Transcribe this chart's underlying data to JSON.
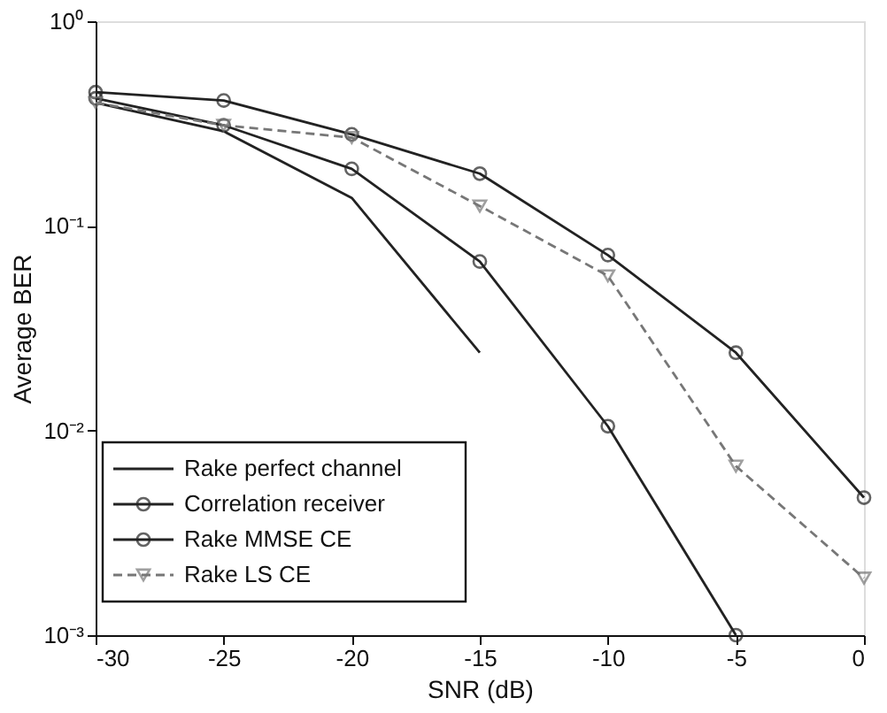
{
  "chart_data": {
    "type": "line",
    "xlabel": "SNR (dB)",
    "ylabel": "Average BER",
    "log": "y",
    "grid": false,
    "legend": "bottom left",
    "x": [
      -30,
      -25,
      -20,
      -15,
      -10,
      -5,
      0
    ],
    "xlim": [
      -30,
      0
    ],
    "xticks": [
      -30,
      -25,
      -20,
      -15,
      -10,
      -5,
      0
    ],
    "ylim": [
      0.001,
      1
    ],
    "yticks": [
      {
        "value": 0.001,
        "label": "10⁻³"
      },
      {
        "value": 0.01,
        "label": "10⁻²"
      },
      {
        "value": 0.1,
        "label": "10⁻¹"
      },
      {
        "value": 1,
        "label": "10⁰"
      }
    ],
    "series": [
      {
        "name": "Rake perfect channel",
        "color": "#222222",
        "marker": "none",
        "line_style": "solid",
        "values": [
          0.4,
          0.29,
          0.137,
          0.024,
          null,
          null,
          null
        ]
      },
      {
        "name": "Correlation receiver",
        "color": "#222222",
        "marker": "circle",
        "line_style": "solid",
        "values": [
          0.45,
          0.41,
          0.28,
          0.18,
          0.072,
          0.024,
          0.0047
        ]
      },
      {
        "name": "Rake MMSE CE",
        "color": "#222222",
        "marker": "circle",
        "line_style": "solid",
        "values": [
          0.42,
          0.31,
          0.19,
          0.067,
          0.0105,
          0.001,
          null
        ]
      },
      {
        "name": "Rake LS CE",
        "color": "#777777",
        "marker": "triangle",
        "line_style": "dashed",
        "values": [
          0.4,
          0.31,
          0.27,
          0.125,
          0.057,
          0.0067,
          0.0019
        ]
      }
    ]
  }
}
